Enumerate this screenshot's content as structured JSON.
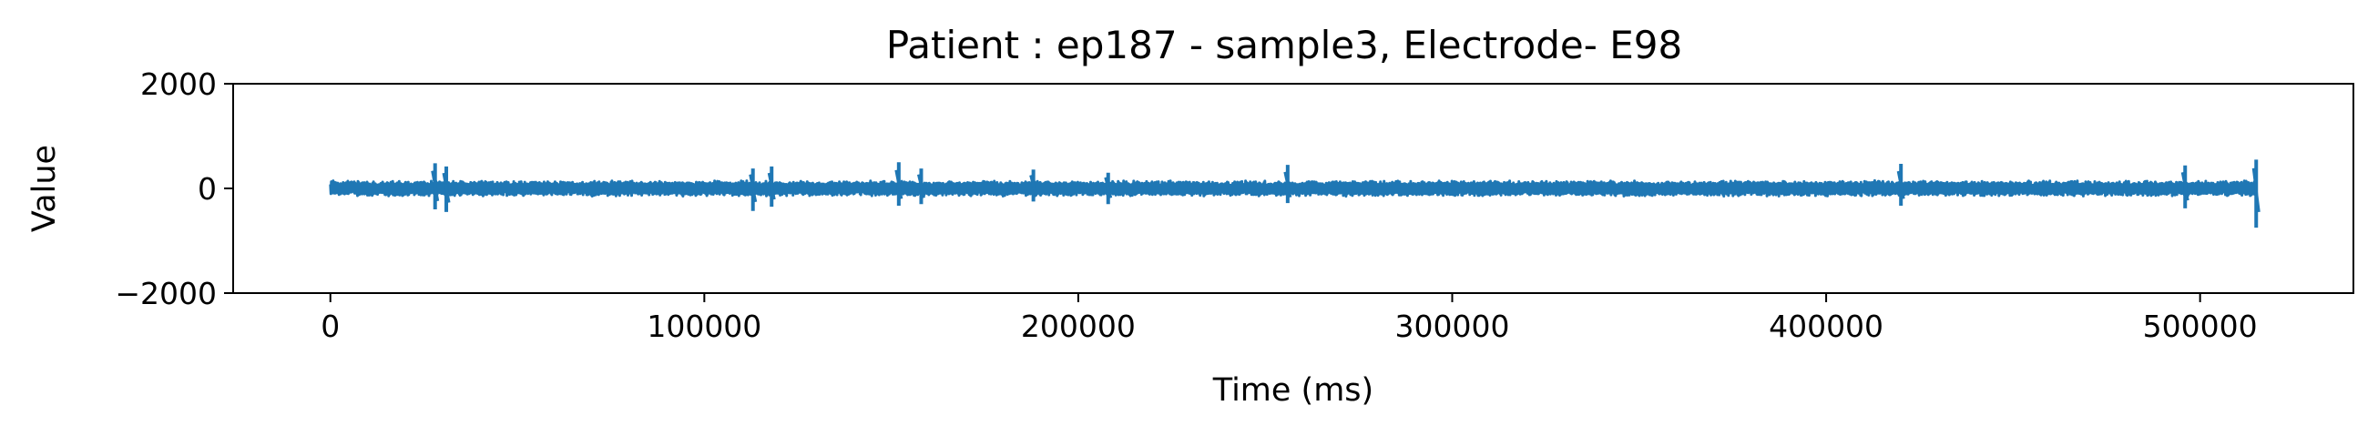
{
  "chart_data": {
    "type": "line",
    "title": "Patient : ep187 - sample3, Electrode- E98",
    "xlabel": "Time (ms)",
    "ylabel": "Value",
    "xlim": [
      -26000,
      541000
    ],
    "ylim": [
      -2000,
      2000
    ],
    "x_ticks": [
      0,
      100000,
      200000,
      300000,
      400000,
      500000
    ],
    "x_tick_labels": [
      "0",
      "100000",
      "200000",
      "300000",
      "400000",
      "500000"
    ],
    "y_ticks": [
      -2000,
      0,
      2000
    ],
    "y_tick_labels": [
      "−2000",
      "0",
      "2000"
    ],
    "grid": false,
    "legend": "none",
    "series": [
      {
        "color": "#1f77b4",
        "x_range": [
          0,
          515000
        ],
        "baseline": 0,
        "typical_amplitude": 150,
        "spikes": [
          {
            "x": 28000,
            "min": -400,
            "max": 480
          },
          {
            "x": 31000,
            "min": -450,
            "max": 420
          },
          {
            "x": 113000,
            "min": -430,
            "max": 380
          },
          {
            "x": 118000,
            "min": -350,
            "max": 420
          },
          {
            "x": 152000,
            "min": -330,
            "max": 500
          },
          {
            "x": 158000,
            "min": -300,
            "max": 380
          },
          {
            "x": 188000,
            "min": -250,
            "max": 360
          },
          {
            "x": 208000,
            "min": -300,
            "max": 300
          },
          {
            "x": 256000,
            "min": -280,
            "max": 450
          },
          {
            "x": 420000,
            "min": -330,
            "max": 470
          },
          {
            "x": 496000,
            "min": -380,
            "max": 440
          },
          {
            "x": 515000,
            "min": -750,
            "max": 550
          }
        ]
      }
    ]
  }
}
